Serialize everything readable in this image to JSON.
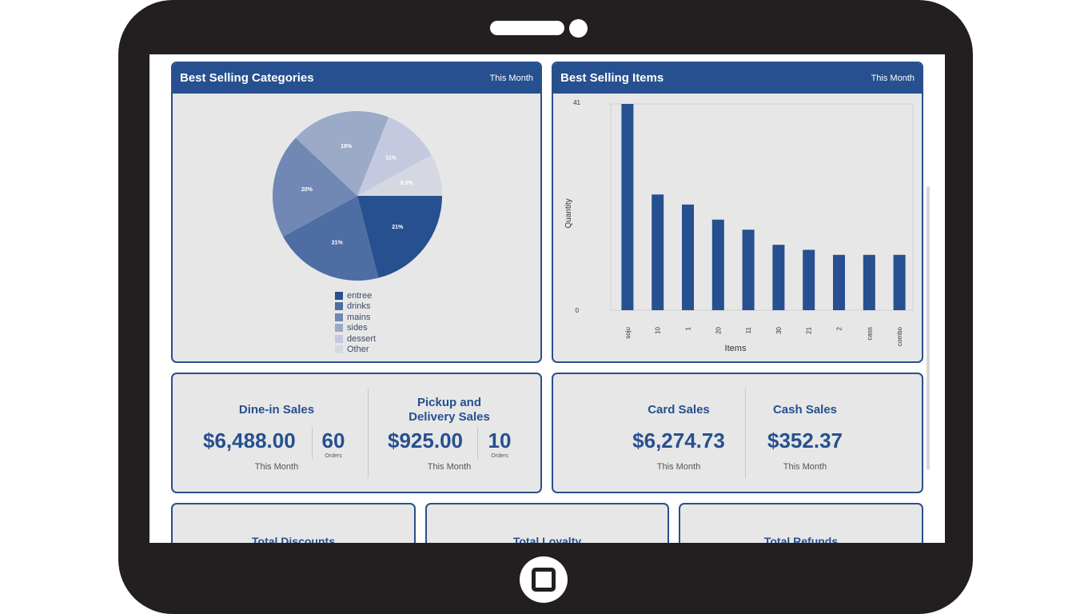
{
  "categories_card": {
    "title": "Best Selling Categories",
    "period": "This Month"
  },
  "items_card": {
    "title": "Best Selling Items",
    "period": "This Month"
  },
  "chart_data": [
    {
      "type": "pie",
      "title": "Best Selling Categories",
      "categories": [
        "entree",
        "drinks",
        "mains",
        "sides",
        "dessert",
        "Other"
      ],
      "values": [
        21,
        21,
        20,
        19,
        11,
        8.0
      ],
      "labels": [
        "21%",
        "21%",
        "20%",
        "19%",
        "11%",
        "8.0%"
      ],
      "colors": [
        "#26508f",
        "#4d6da3",
        "#7088b3",
        "#9aaac7",
        "#c5c9e0",
        "#d5d8e0"
      ],
      "legend": "bottom"
    },
    {
      "type": "bar",
      "title": "Best Selling Items",
      "categories": [
        "soju",
        "10",
        "1",
        "20",
        "11",
        "30",
        "21",
        "2",
        "cass",
        "combo"
      ],
      "values": [
        41,
        23,
        21,
        18,
        16,
        13,
        12,
        11,
        11,
        11
      ],
      "xlabel": "Items",
      "ylabel": "Quantity",
      "ylim": [
        0,
        41
      ],
      "yticks": [
        "0",
        "41"
      ],
      "color": "#26508f"
    }
  ],
  "dine_in": {
    "title": "Dine-in Sales",
    "amount": "$6,488.00",
    "orders": "60",
    "orders_label": "Orders",
    "period": "This Month"
  },
  "pickup": {
    "title_line1": "Pickup and",
    "title_line2": "Delivery Sales",
    "amount": "$925.00",
    "orders": "10",
    "orders_label": "Orders",
    "period": "This Month"
  },
  "card_sales": {
    "title": "Card Sales",
    "amount": "$6,274.73",
    "period": "This Month"
  },
  "cash_sales": {
    "title": "Cash Sales",
    "amount": "$352.37",
    "period": "This Month"
  },
  "bottom_cards": [
    {
      "title": "Total Discounts"
    },
    {
      "title": "Total Loyalty"
    },
    {
      "title": "Total Refunds"
    }
  ]
}
